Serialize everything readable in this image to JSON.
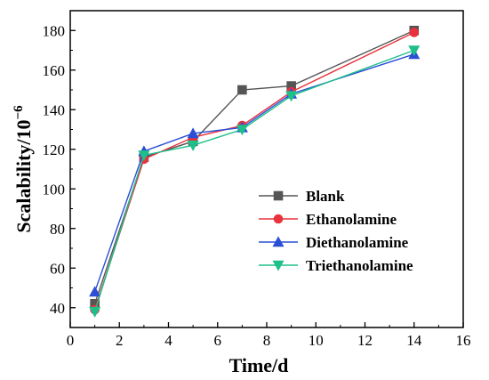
{
  "chart_data": {
    "type": "line",
    "title": "",
    "xlabel": "Time/d",
    "ylabel_main": "Scalability/10",
    "ylabel_sup": "−6",
    "xlim": [
      0,
      16
    ],
    "ylim": [
      30,
      190
    ],
    "xticks": [
      0,
      2,
      4,
      6,
      8,
      10,
      12,
      14,
      16
    ],
    "yticks": [
      40,
      60,
      80,
      100,
      120,
      140,
      160,
      180
    ],
    "grid": false,
    "legend_position": "center-right",
    "x": [
      1,
      3,
      5,
      7,
      9,
      14
    ],
    "series": [
      {
        "name": "Blank",
        "values": [
          42,
          116,
          124,
          150,
          152,
          180
        ],
        "color": "#555555",
        "marker": "square"
      },
      {
        "name": "Ethanolamine",
        "values": [
          39,
          115,
          126,
          132,
          149,
          179
        ],
        "color": "#e8323c",
        "marker": "circle"
      },
      {
        "name": "Diethanolamine",
        "values": [
          48,
          119,
          128,
          131,
          148,
          168
        ],
        "color": "#2a4fd6",
        "marker": "triangle-up"
      },
      {
        "name": "Triethanolamine",
        "values": [
          38,
          117,
          122,
          130,
          147,
          170
        ],
        "color": "#1fbf8a",
        "marker": "triangle-down"
      }
    ]
  }
}
